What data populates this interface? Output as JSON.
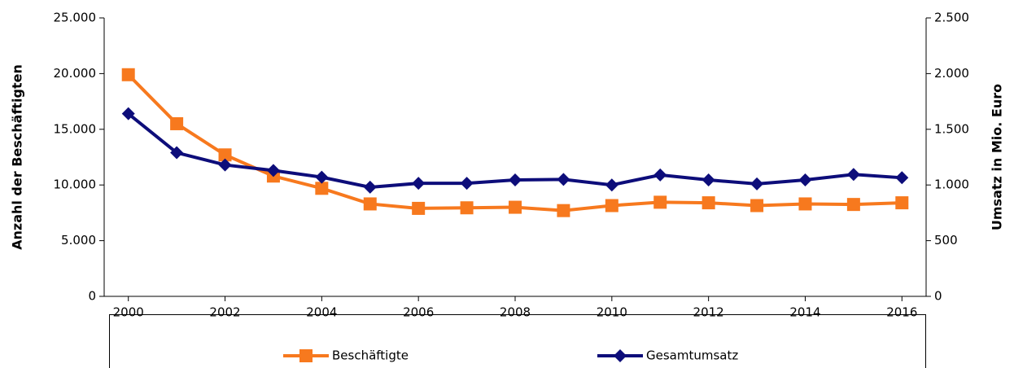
{
  "chart_data": {
    "type": "line",
    "y_label": "Anzahl der Beschäftigten",
    "y2_label": "Umsatz in Mio. Euro",
    "x": [
      2000,
      2001,
      2002,
      2003,
      2004,
      2005,
      2006,
      2007,
      2008,
      2009,
      2010,
      2011,
      2012,
      2013,
      2014,
      2015,
      2016
    ],
    "xlim": [
      1999.5,
      2016.5
    ],
    "xticks": [
      2000,
      2002,
      2004,
      2006,
      2008,
      2010,
      2012,
      2014,
      2016
    ],
    "ylim": [
      0,
      25000
    ],
    "yticks": [
      0,
      {
        "value": 5000,
        "label": "5.000"
      },
      {
        "value": 10000,
        "label": "10.000"
      },
      {
        "value": 15000,
        "label": "15.000"
      },
      {
        "value": 20000,
        "label": "20.000"
      },
      {
        "value": 25000,
        "label": "25.000"
      }
    ],
    "y2lim": [
      0,
      2500
    ],
    "y2ticks": [
      0,
      500,
      {
        "value": 1000,
        "label": "1.000"
      },
      {
        "value": 1500,
        "label": "1.500"
      },
      {
        "value": 2000,
        "label": "2.000"
      },
      {
        "value": 2500,
        "label": "2.500"
      }
    ],
    "legend": "bottom",
    "series": [
      {
        "name": "Beschäftigte",
        "color": "#f7791e",
        "marker": "square",
        "values": [
          19900,
          15500,
          12700,
          10800,
          9700,
          8300,
          7900,
          7950,
          8000,
          7700,
          8150,
          8450,
          8400,
          8150,
          8300,
          8250,
          8400
        ]
      },
      {
        "name": "Gesamtumsatz",
        "color": "#0d0d7a",
        "marker": "diamond",
        "axis": "y2",
        "values": [
          1640,
          1290,
          1180,
          1130,
          1070,
          980,
          1015,
          1015,
          1045,
          1050,
          1000,
          1090,
          1045,
          1010,
          1045,
          1095,
          1065
        ]
      }
    ]
  }
}
